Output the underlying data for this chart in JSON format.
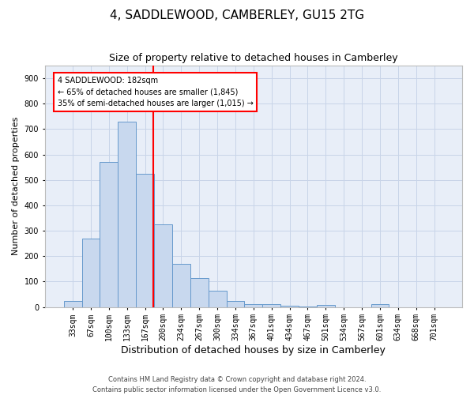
{
  "title": "4, SADDLEWOOD, CAMBERLEY, GU15 2TG",
  "subtitle": "Size of property relative to detached houses in Camberley",
  "xlabel": "Distribution of detached houses by size in Camberley",
  "ylabel": "Number of detached properties",
  "footer1": "Contains HM Land Registry data © Crown copyright and database right 2024.",
  "footer2": "Contains public sector information licensed under the Open Government Licence v3.0.",
  "bar_labels": [
    "33sqm",
    "67sqm",
    "100sqm",
    "133sqm",
    "167sqm",
    "200sqm",
    "234sqm",
    "267sqm",
    "300sqm",
    "334sqm",
    "367sqm",
    "401sqm",
    "434sqm",
    "467sqm",
    "501sqm",
    "534sqm",
    "567sqm",
    "601sqm",
    "634sqm",
    "668sqm",
    "701sqm"
  ],
  "bar_values": [
    25,
    270,
    570,
    730,
    525,
    325,
    170,
    115,
    65,
    22,
    12,
    10,
    5,
    3,
    8,
    0,
    0,
    10,
    0,
    0,
    0
  ],
  "bar_color": "#c8d8ee",
  "bar_edgecolor": "#6699cc",
  "ylim": [
    0,
    950
  ],
  "yticks": [
    0,
    100,
    200,
    300,
    400,
    500,
    600,
    700,
    800,
    900
  ],
  "annotation_title": "4 SADDLEWOOD: 182sqm",
  "annotation_line1": "← 65% of detached houses are smaller (1,845)",
  "annotation_line2": "35% of semi-detached houses are larger (1,015) →",
  "grid_color": "#c8d4e8",
  "bg_color": "#e8eef8",
  "title_fontsize": 11,
  "subtitle_fontsize": 9,
  "ylabel_fontsize": 8,
  "xlabel_fontsize": 9,
  "tick_fontsize": 7,
  "footer_fontsize": 6,
  "ann_fontsize": 7
}
